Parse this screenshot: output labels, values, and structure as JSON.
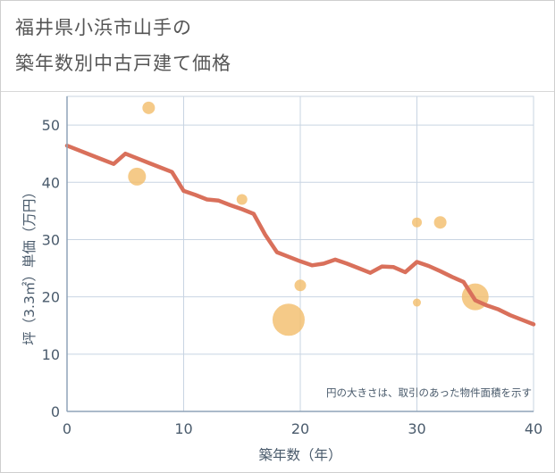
{
  "title_line1": "福井県小浜市山手の",
  "title_line2": "築年数別中古戸建て価格",
  "note": "円の大きさは、取引のあった物件面積を示す",
  "chart_data": {
    "type": "scatter",
    "xlabel": "築年数（年）",
    "ylabel": "坪（3.3㎡）単価（万円）",
    "xlim": [
      0,
      40
    ],
    "ylim": [
      0,
      55
    ],
    "xticks": [
      0,
      10,
      20,
      30,
      40
    ],
    "yticks": [
      0,
      10,
      20,
      30,
      40,
      50
    ],
    "grid": true,
    "colors": {
      "line": "#d9705b",
      "bubble": "#f3bd6a",
      "grid": "#c8d4e2",
      "axis": "#8fa3b8",
      "text": "#4a5b6c"
    },
    "trend_line": {
      "x": [
        0,
        1,
        2,
        3,
        4,
        5,
        6,
        7,
        8,
        9,
        10,
        11,
        12,
        13,
        14,
        15,
        16,
        17,
        18,
        19,
        20,
        21,
        22,
        23,
        24,
        25,
        26,
        27,
        28,
        29,
        30,
        31,
        32,
        33,
        34,
        35,
        36,
        37,
        38,
        39,
        40
      ],
      "y": [
        46.4,
        45.6,
        44.8,
        44.0,
        43.2,
        45.0,
        44.2,
        43.4,
        42.6,
        41.8,
        38.5,
        37.8,
        37.0,
        36.8,
        36.0,
        35.3,
        34.5,
        30.8,
        27.8,
        27.0,
        26.2,
        25.5,
        25.8,
        26.5,
        25.8,
        25.0,
        24.2,
        25.3,
        25.2,
        24.3,
        26.1,
        25.4,
        24.5,
        23.5,
        22.6,
        19.4,
        18.5,
        17.8,
        16.8,
        16.0,
        15.2
      ]
    },
    "bubbles": [
      {
        "x": 6,
        "y": 41,
        "r": 10
      },
      {
        "x": 7,
        "y": 53,
        "r": 7
      },
      {
        "x": 15,
        "y": 37,
        "r": 6
      },
      {
        "x": 19,
        "y": 16,
        "r": 18
      },
      {
        "x": 20,
        "y": 22,
        "r": 6.5
      },
      {
        "x": 30,
        "y": 33,
        "r": 5.5
      },
      {
        "x": 30,
        "y": 19,
        "r": 4.5
      },
      {
        "x": 32,
        "y": 33,
        "r": 7
      },
      {
        "x": 35,
        "y": 20,
        "r": 15
      }
    ]
  }
}
